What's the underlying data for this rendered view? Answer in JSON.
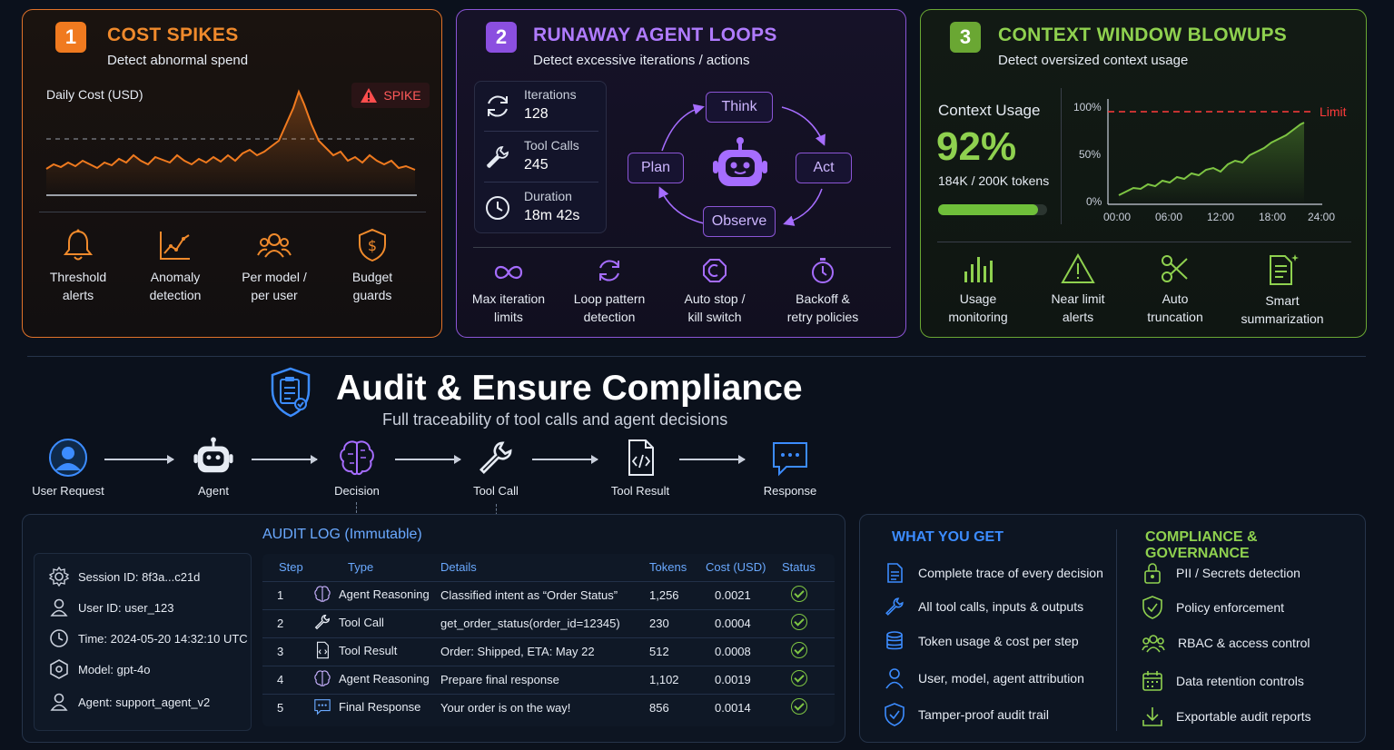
{
  "panels": {
    "cost": {
      "number": "1",
      "title": "COST SPIKES",
      "subtitle": "Detect abnormal spend",
      "chart_label": "Daily Cost (USD)",
      "spike_badge": "SPIKE",
      "features": [
        {
          "l1": "Threshold",
          "l2": "alerts",
          "icon": "bell-icon"
        },
        {
          "l1": "Anomaly",
          "l2": "detection",
          "icon": "trend-chart-icon"
        },
        {
          "l1": "Per model /",
          "l2": "per user",
          "icon": "users-icon"
        },
        {
          "l1": "Budget",
          "l2": "guards",
          "icon": "dollar-shield-icon"
        }
      ],
      "accent": "#f08a2c"
    },
    "loops": {
      "number": "2",
      "title": "RUNAWAY AGENT LOOPS",
      "subtitle": "Detect excessive iterations / actions",
      "stats": [
        {
          "label": "Iterations",
          "value": "128",
          "icon": "refresh-icon"
        },
        {
          "label": "Tool Calls",
          "value": "245",
          "icon": "wrench-icon"
        },
        {
          "label": "Duration",
          "value": "18m 42s",
          "icon": "clock-icon"
        }
      ],
      "cycle": {
        "think": "Think",
        "act": "Act",
        "observe": "Observe",
        "plan": "Plan"
      },
      "features": [
        {
          "l1": "Max iteration",
          "l2": "limits",
          "icon": "infinity-icon"
        },
        {
          "l1": "Loop pattern",
          "l2": "detection",
          "icon": "loop-icon"
        },
        {
          "l1": "Auto stop /",
          "l2": "kill switch",
          "icon": "stop-icon"
        },
        {
          "l1": "Backoff &",
          "l2": "retry policies",
          "icon": "stopwatch-icon"
        }
      ],
      "accent": "#a66dff"
    },
    "context": {
      "number": "3",
      "title": "CONTEXT WINDOW BLOWUPS",
      "subtitle": "Detect oversized context usage",
      "usage_label": "Context Usage",
      "usage_pct": "92%",
      "usage_tokens": "184K / 200K tokens",
      "usage_fraction": 0.92,
      "limit_label": "Limit",
      "y_ticks": [
        "100%",
        "50%",
        "0%"
      ],
      "x_ticks": [
        "00:00",
        "06:00",
        "12:00",
        "18:00",
        "24:00"
      ],
      "features": [
        {
          "l1": "Usage",
          "l2": "monitoring",
          "icon": "bar-chart-icon"
        },
        {
          "l1": "Near limit",
          "l2": "alerts",
          "icon": "warning-icon"
        },
        {
          "l1": "Auto",
          "l2": "truncation",
          "icon": "scissors-icon"
        },
        {
          "l1": "Smart",
          "l2": "summarization",
          "icon": "document-sparkle-icon"
        }
      ],
      "accent": "#8fd14f"
    }
  },
  "audit": {
    "title": "Audit & Ensure Compliance",
    "subtitle": "Full traceability of tool calls and agent decisions",
    "flow": [
      "User Request",
      "Agent",
      "Decision",
      "Tool Call",
      "Tool Result",
      "Response"
    ],
    "log_title": "AUDIT LOG (Immutable)",
    "session": [
      {
        "text": "Session ID: 8f3a...c21d",
        "icon": "gear-icon"
      },
      {
        "text": "User ID: user_123",
        "icon": "user-icon"
      },
      {
        "text": "Time: 2024-05-20 14:32:10 UTC",
        "icon": "clock-icon"
      },
      {
        "text": "Model: gpt-4o",
        "icon": "model-icon"
      },
      {
        "text": "Agent: support_agent_v2",
        "icon": "agent-icon"
      }
    ],
    "columns": [
      "Step",
      "Type",
      "Details",
      "Tokens",
      "Cost (USD)",
      "Status"
    ],
    "rows": [
      {
        "step": "1",
        "type": "Agent Reasoning",
        "details": "Classified intent as “Order Status”",
        "tokens": "1,256",
        "cost": "0.0021"
      },
      {
        "step": "2",
        "type": "Tool Call",
        "details": "get_order_status(order_id=12345)",
        "tokens": "230",
        "cost": "0.0004"
      },
      {
        "step": "3",
        "type": "Tool Result",
        "details": "Order: Shipped, ETA: May 22",
        "tokens": "512",
        "cost": "0.0008"
      },
      {
        "step": "4",
        "type": "Agent Reasoning",
        "details": "Prepare final response",
        "tokens": "1,102",
        "cost": "0.0019"
      },
      {
        "step": "5",
        "type": "Final Response",
        "details": "Your order is on the way!",
        "tokens": "856",
        "cost": "0.0014"
      }
    ]
  },
  "benefits": {
    "what_title": "WHAT YOU GET",
    "what": [
      "Complete trace of every decision",
      "All tool calls, inputs & outputs",
      "Token usage & cost per step",
      "User, model, agent attribution",
      "Tamper-proof audit trail"
    ],
    "gov_title": "COMPLIANCE & GOVERNANCE",
    "gov": [
      "PII / Secrets detection",
      "Policy enforcement",
      "RBAC & access control",
      "Data retention controls",
      "Exportable audit reports"
    ]
  }
}
